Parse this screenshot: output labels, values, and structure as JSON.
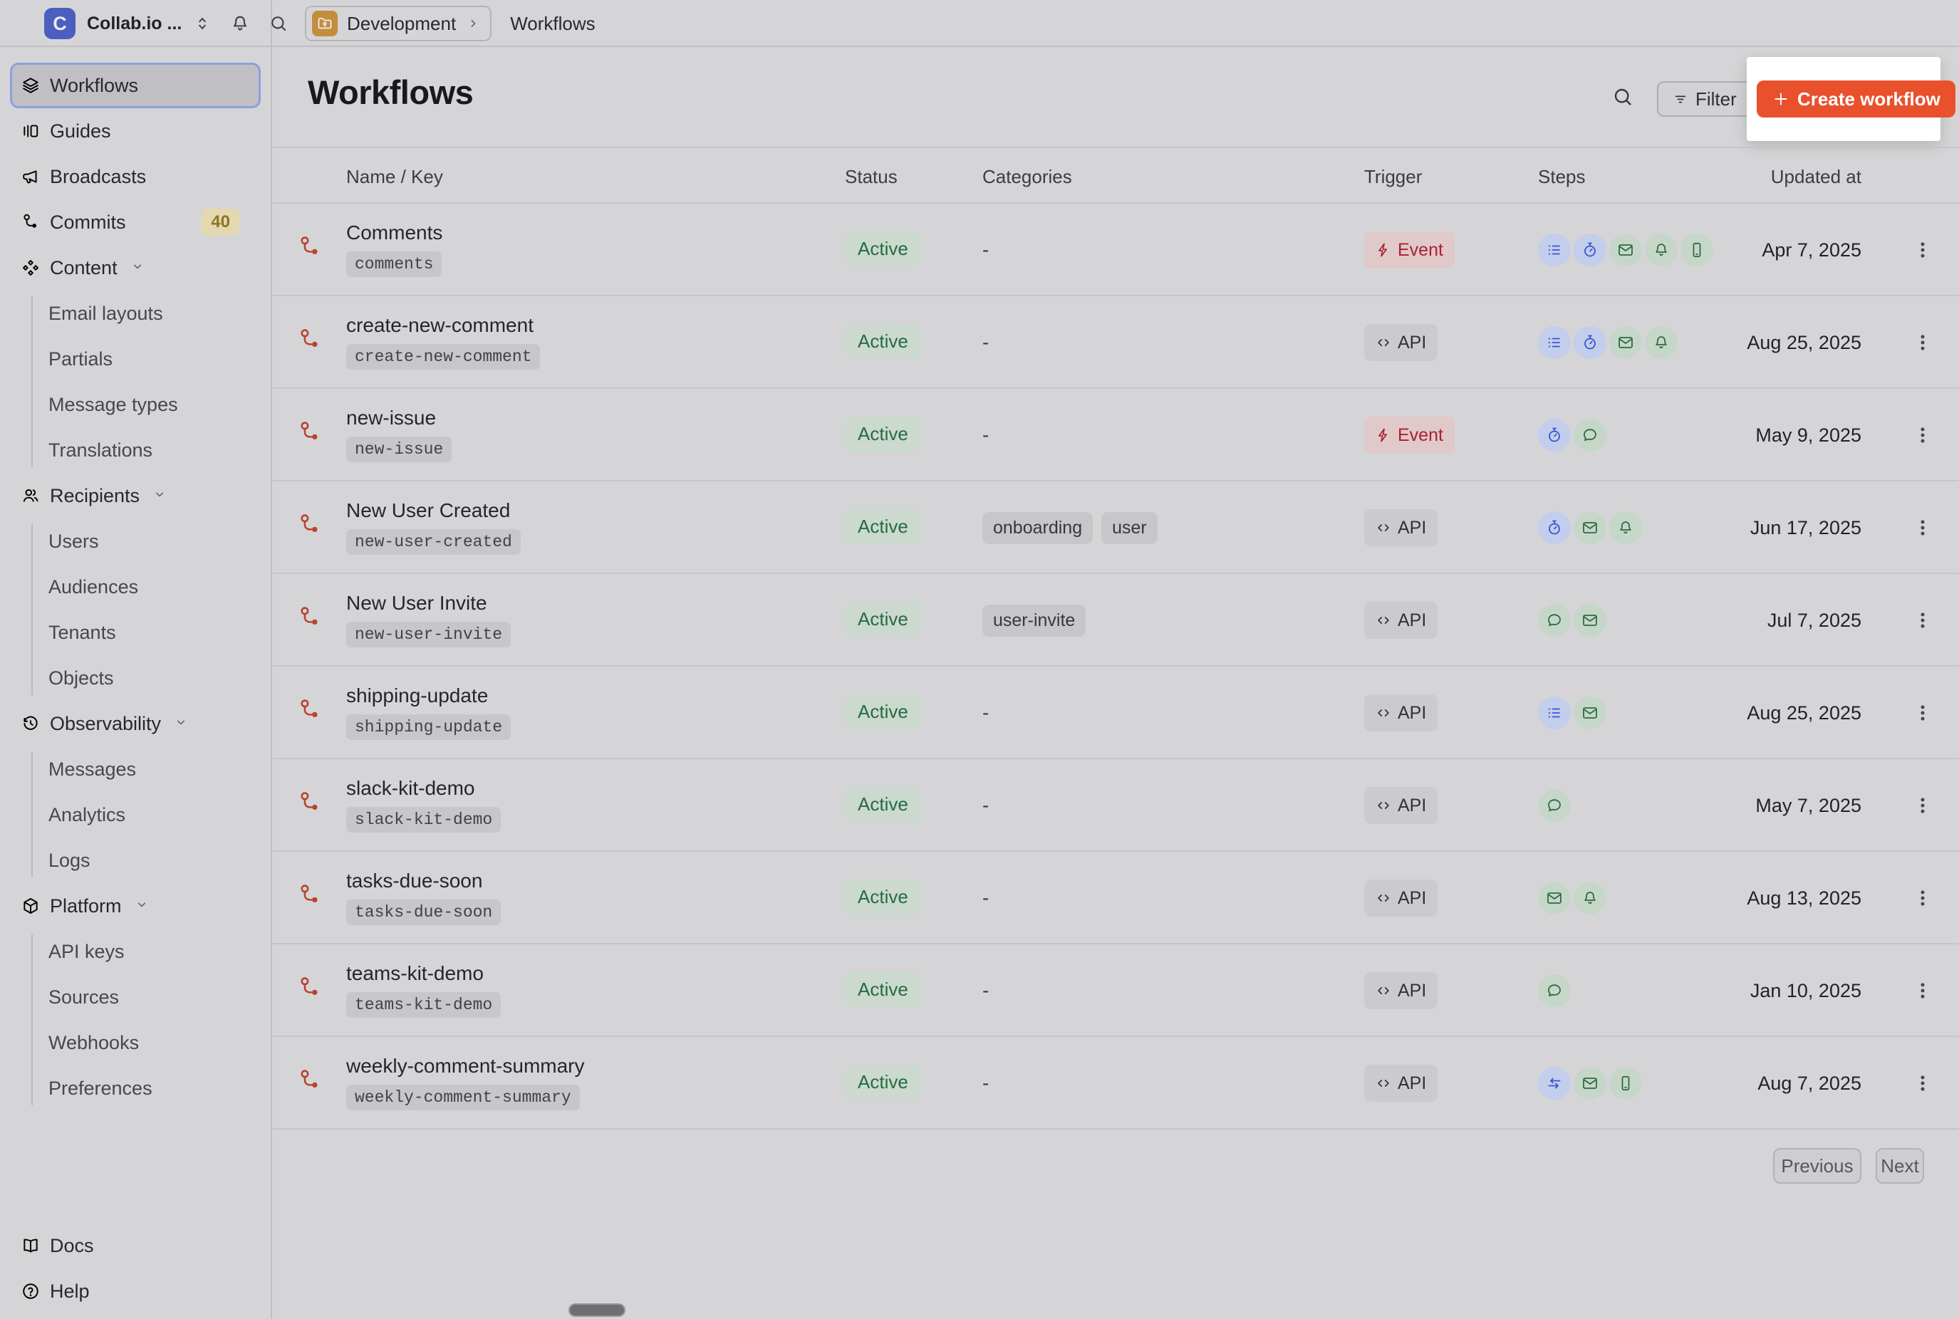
{
  "workspace": {
    "logo_letter": "C",
    "name": "Collab.io ..."
  },
  "breadcrumb": {
    "environment": "Development",
    "page": "Workflows"
  },
  "header": {
    "title": "Workflows",
    "filter_label": "Filter",
    "create_plus": "+",
    "create_label": "Create workflow"
  },
  "sidebar": {
    "items": [
      {
        "label": "Workflows",
        "icon": "layers",
        "selected": true
      },
      {
        "label": "Guides",
        "icon": "guides"
      },
      {
        "label": "Broadcasts",
        "icon": "megaphone"
      },
      {
        "label": "Commits",
        "icon": "commit",
        "badge": "40"
      },
      {
        "label": "Content",
        "icon": "content",
        "expandable": true,
        "children": [
          "Email layouts",
          "Partials",
          "Message types",
          "Translations"
        ]
      },
      {
        "label": "Recipients",
        "icon": "people",
        "expandable": true,
        "children": [
          "Users",
          "Audiences",
          "Tenants",
          "Objects"
        ]
      },
      {
        "label": "Observability",
        "icon": "history",
        "expandable": true,
        "children": [
          "Messages",
          "Analytics",
          "Logs"
        ]
      },
      {
        "label": "Platform",
        "icon": "box",
        "expandable": true,
        "children": [
          "API keys",
          "Sources",
          "Webhooks",
          "Preferences"
        ]
      }
    ],
    "footer_items": [
      {
        "label": "Docs",
        "icon": "book"
      },
      {
        "label": "Help",
        "icon": "help"
      }
    ]
  },
  "table": {
    "columns": [
      "Name / Key",
      "Status",
      "Categories",
      "Trigger",
      "Steps",
      "Updated at"
    ],
    "empty_value": "-",
    "rows": [
      {
        "name": "Comments",
        "key": "comments",
        "status": "Active",
        "categories": [],
        "trigger": "Event",
        "steps": [
          "list",
          "timer",
          "email",
          "bell",
          "phone"
        ],
        "updated": "Apr 7, 2025"
      },
      {
        "name": "create-new-comment",
        "key": "create-new-comment",
        "status": "Active",
        "categories": [],
        "trigger": "API",
        "steps": [
          "list",
          "timer",
          "email",
          "bell"
        ],
        "updated": "Aug 25, 2025"
      },
      {
        "name": "new-issue",
        "key": "new-issue",
        "status": "Active",
        "categories": [],
        "trigger": "Event",
        "steps": [
          "timer",
          "chat"
        ],
        "updated": "May 9, 2025"
      },
      {
        "name": "New User Created",
        "key": "new-user-created",
        "status": "Active",
        "categories": [
          "onboarding",
          "user"
        ],
        "trigger": "API",
        "steps": [
          "timer",
          "email",
          "bell"
        ],
        "updated": "Jun 17, 2025"
      },
      {
        "name": "New User Invite",
        "key": "new-user-invite",
        "status": "Active",
        "categories": [
          "user-invite"
        ],
        "trigger": "API",
        "steps": [
          "chat",
          "email"
        ],
        "updated": "Jul 7, 2025"
      },
      {
        "name": "shipping-update",
        "key": "shipping-update",
        "status": "Active",
        "categories": [],
        "trigger": "API",
        "steps": [
          "list",
          "email"
        ],
        "updated": "Aug 25, 2025"
      },
      {
        "name": "slack-kit-demo",
        "key": "slack-kit-demo",
        "status": "Active",
        "categories": [],
        "trigger": "API",
        "steps": [
          "chat"
        ],
        "updated": "May 7, 2025"
      },
      {
        "name": "tasks-due-soon",
        "key": "tasks-due-soon",
        "status": "Active",
        "categories": [],
        "trigger": "API",
        "steps": [
          "email",
          "bell"
        ],
        "updated": "Aug 13, 2025"
      },
      {
        "name": "teams-kit-demo",
        "key": "teams-kit-demo",
        "status": "Active",
        "categories": [],
        "trigger": "API",
        "steps": [
          "chat"
        ],
        "updated": "Jan 10, 2025"
      },
      {
        "name": "weekly-comment-summary",
        "key": "weekly-comment-summary",
        "status": "Active",
        "categories": [],
        "trigger": "API",
        "steps": [
          "fetch",
          "email",
          "phone"
        ],
        "updated": "Aug 7, 2025"
      }
    ]
  },
  "pagination": {
    "previous": "Previous",
    "next": "Next"
  },
  "colors": {
    "orange": "#E9502C",
    "highlight": "#FFFFFF",
    "logo_blue": "#4C5EC0",
    "folder_amber": "#C28E3C",
    "wf_red": "#B8432E",
    "active_bg": "#CBD9CE",
    "active_tx": "#276B41",
    "event_bg": "#E0C9C9",
    "event_tx": "#AB1F30",
    "step_blue_bg": "#C3CDEC",
    "step_blue_ic": "#3B55CF",
    "step_green_bg": "#C6D7CA",
    "step_green_ic": "#2E6B41",
    "amber_bg": "#E3D8AF",
    "amber_tx": "#8E7520"
  }
}
